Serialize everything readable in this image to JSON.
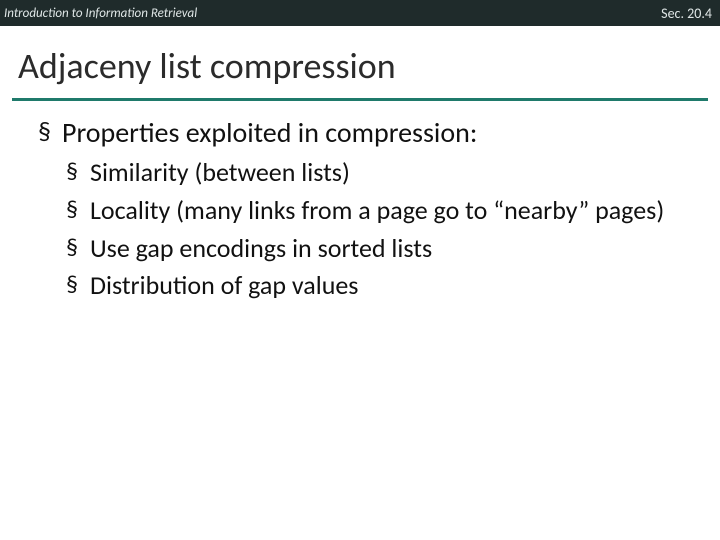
{
  "header": {
    "course": "Introduction to Information Retrieval",
    "section": "Sec. 20.4"
  },
  "title": "Adjaceny list compression",
  "bullets": {
    "main": "Properties exploited in compression:",
    "sub1": "Similarity (between lists)",
    "sub2": "Locality (many links from a page go to “nearby” pages)",
    "sub3": "Use gap encodings in sorted lists",
    "sub4": "Distribution of gap values"
  },
  "colors": {
    "header_bg": "#1f2b2b",
    "header_text": "#dfe6e6",
    "underline": "#1f7a6b",
    "title_text": "#2b2b2b",
    "body_text": "#111111",
    "background": "#ffffff"
  }
}
